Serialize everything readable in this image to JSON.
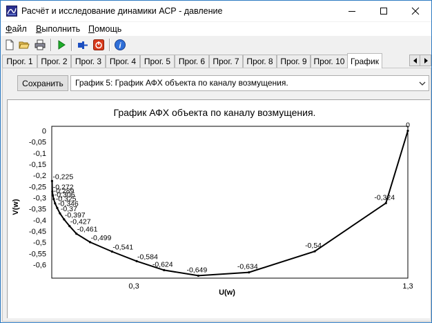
{
  "window": {
    "title": "Расчёт и исследование динамики АСР - давление",
    "controls": [
      "minimize",
      "maximize",
      "close"
    ]
  },
  "menu": [
    {
      "label": "Файл",
      "underline": "Ф"
    },
    {
      "label": "Выполнить",
      "underline": "В"
    },
    {
      "label": "Помощь",
      "underline": "П"
    }
  ],
  "toolbar": {
    "icons": [
      "new-file-icon",
      "open-folder-icon",
      "print-icon",
      "run-icon",
      "stop-pin-icon",
      "power-icon",
      "info-icon"
    ]
  },
  "tabs": [
    {
      "label": "Прог. 1"
    },
    {
      "label": "Прог. 2"
    },
    {
      "label": "Прог. 3"
    },
    {
      "label": "Прог. 4"
    },
    {
      "label": "Прог. 5"
    },
    {
      "label": "Прог. 6"
    },
    {
      "label": "Прог. 7"
    },
    {
      "label": "Прог. 8"
    },
    {
      "label": "Прог. 9"
    },
    {
      "label": "Прог. 10"
    },
    {
      "label": "График",
      "active": true
    }
  ],
  "controls": {
    "save_label": "Сохранить",
    "graph_select": "График 5: График АФХ объекта по каналу возмущения."
  },
  "chart_data": {
    "type": "line",
    "title": "График АФХ объекта по каналу возмущения.",
    "xlabel": "U(w)",
    "ylabel": "V(w)",
    "xlim": [
      0,
      1.3
    ],
    "ylim": [
      -0.66,
      0.02
    ],
    "x_ticks": [
      "0,3",
      "1,3"
    ],
    "y_ticks": [
      "0",
      "-0,05",
      "-0,1",
      "-0,15",
      "-0,2",
      "-0,25",
      "-0,3",
      "-0,35",
      "-0,4",
      "-0,45",
      "-0,5",
      "-0,55",
      "-0,6"
    ],
    "grid": false,
    "line_color": "#000000",
    "series": [
      {
        "x": [
          1.3,
          1.22,
          0.96,
          0.72,
          0.535,
          0.41,
          0.31,
          0.22,
          0.14,
          0.09,
          0.065,
          0.045,
          0.03,
          0.02,
          0.012,
          0.007,
          0.004,
          0.002,
          0.001
        ],
        "y": [
          0,
          -0.324,
          -0.54,
          -0.634,
          -0.649,
          -0.624,
          -0.584,
          -0.541,
          -0.499,
          -0.461,
          -0.427,
          -0.397,
          -0.37,
          -0.346,
          -0.325,
          -0.306,
          -0.289,
          -0.272,
          -0.225
        ],
        "labels": [
          "0",
          "-0,324",
          "-0,54",
          "-0,634",
          "-0,649",
          "-0,624",
          "-0,584",
          "-0,541",
          "-0,499",
          "-0,461",
          "-0,427",
          "-0,397",
          "-0,37",
          "-0,346",
          "-0,325",
          "-0,306",
          "-0,289",
          "-0,272",
          "-0,225"
        ]
      }
    ]
  }
}
